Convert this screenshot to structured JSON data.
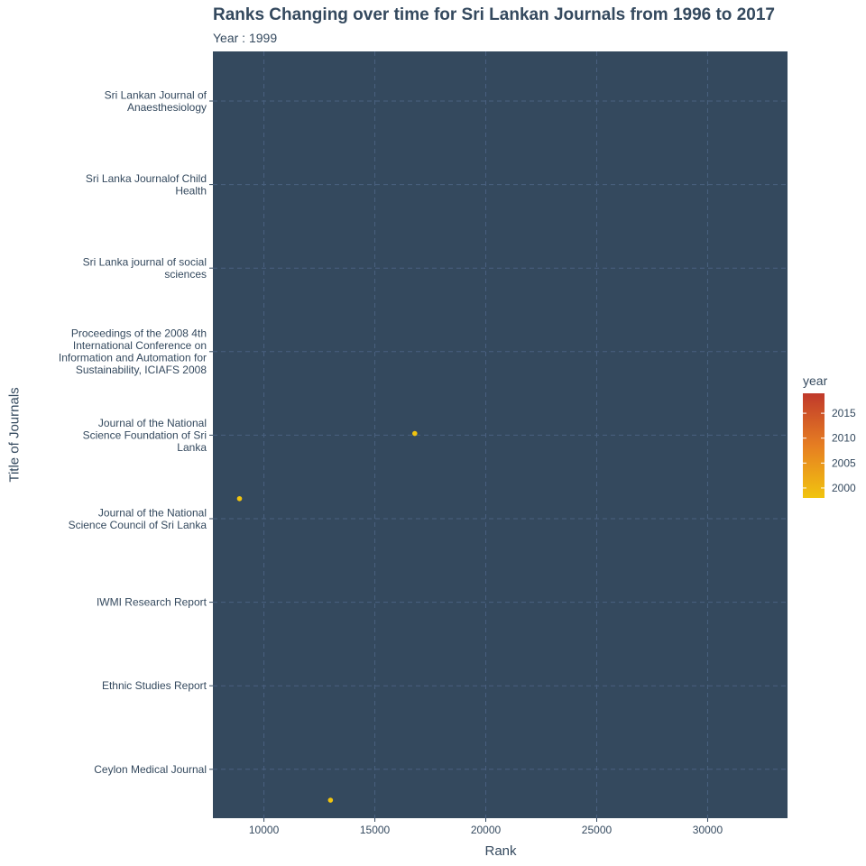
{
  "colors": {
    "panel": "#34495e",
    "grid": "#4a6180",
    "text": "#34495e",
    "point": "#f1c40f",
    "legend_low": "#f1c40f",
    "legend_mid": "#e67e22",
    "legend_high": "#c0392b"
  },
  "chart_data": {
    "type": "scatter",
    "title": "Ranks Changing over time for Sri Lankan Journals from 1996 to 2017",
    "subtitle": "Year : 1999",
    "xlabel": "Rank",
    "ylabel": "Title of Journals",
    "xlim": [
      7700,
      33600
    ],
    "xticks": [
      10000,
      15000,
      20000,
      25000,
      30000
    ],
    "xtick_labels": [
      "10000",
      "15000",
      "20000",
      "25000",
      "30000"
    ],
    "categories": [
      "Sri Lankan Journal of Anaesthesiology",
      "Sri Lanka Journalof Child Health",
      "Sri Lanka journal of social sciences",
      "Proceedings of the 2008 4th International Conference on Information and Automation for Sustainability, ICIAFS 2008",
      "Journal of the National Science Foundation of Sri Lanka",
      "Journal of the National Science Council of Sri Lanka",
      "IWMI Research Report",
      "Ethnic Studies Report",
      "Ceylon Medical Journal"
    ],
    "category_labels": [
      [
        "Sri Lankan Journal of",
        "Anaesthesiology"
      ],
      [
        "Sri Lanka Journalof Child",
        "Health"
      ],
      [
        "Sri Lanka journal of social",
        "sciences"
      ],
      [
        "Proceedings of the 2008 4th",
        "International Conference on",
        "Information and Automation for",
        "Sustainability, ICIAFS 2008"
      ],
      [
        "Journal of the National",
        "Science Foundation of Sri",
        "Lanka"
      ],
      [
        "Journal of the National",
        "Science Council of Sri Lanka"
      ],
      [
        "IWMI Research Report"
      ],
      [
        "Ethnic Studies Report"
      ],
      [
        "Ceylon Medical Journal"
      ]
    ],
    "points": [
      {
        "x": 16800,
        "y": 4.98,
        "year": 1999
      },
      {
        "x": 8900,
        "y": 5.76,
        "year": 1999
      },
      {
        "x": 13000,
        "y": 9.37,
        "year": 1999
      }
    ],
    "grid": true,
    "legend": {
      "title": "year",
      "position": "right",
      "range": [
        1998,
        2019
      ],
      "ticks": [
        2000,
        2005,
        2010,
        2015
      ],
      "tick_labels": [
        "2000",
        "2005",
        "2010",
        "2015"
      ]
    }
  }
}
